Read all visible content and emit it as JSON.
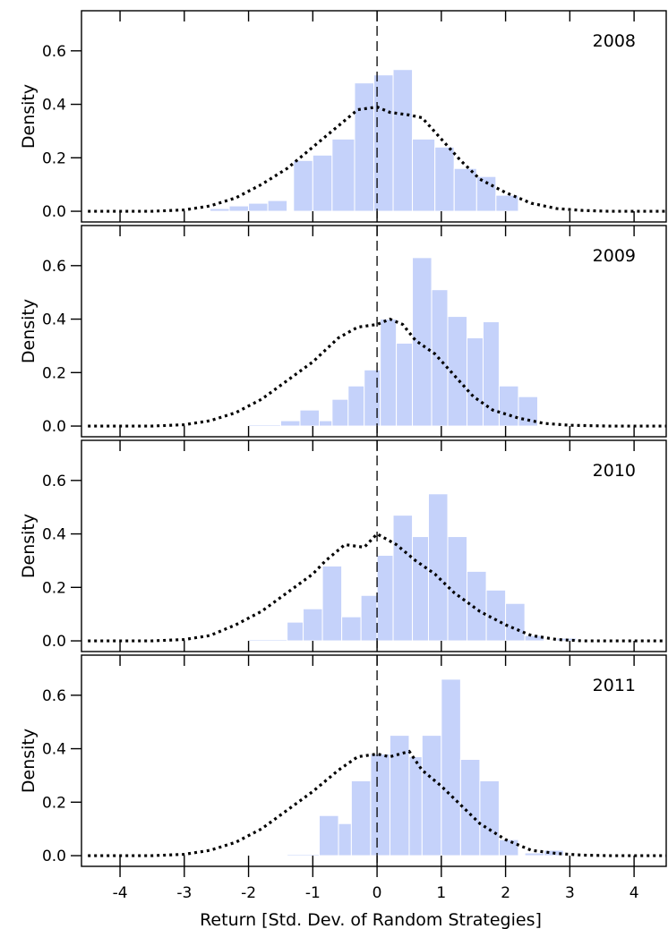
{
  "chart_data": {
    "type": "bar",
    "xlabel": "Return [Std. Dev. of Random Strategies]",
    "ylabel": "Density",
    "xlim": [
      -4.6,
      4.5
    ],
    "ylim": [
      -0.04,
      0.75
    ],
    "x_ticks": [
      -4,
      -3,
      -2,
      -1,
      0,
      1,
      2,
      3,
      4
    ],
    "y_ticks": [
      0.0,
      0.2,
      0.4,
      0.6
    ],
    "y_tick_labels": [
      "0.0",
      "0.2",
      "0.4",
      "0.6"
    ],
    "reference_line_x": 0,
    "bar_color": "#c5d2fa",
    "panels": [
      {
        "label": "2008",
        "bins": [
          {
            "x0": -2.6,
            "x1": -2.3,
            "y": 0.01
          },
          {
            "x0": -2.3,
            "x1": -2.0,
            "y": 0.02
          },
          {
            "x0": -2.0,
            "x1": -1.7,
            "y": 0.03
          },
          {
            "x0": -1.7,
            "x1": -1.4,
            "y": 0.04
          },
          {
            "x0": -1.3,
            "x1": -1.0,
            "y": 0.19
          },
          {
            "x0": -1.0,
            "x1": -0.7,
            "y": 0.21
          },
          {
            "x0": -0.7,
            "x1": -0.35,
            "y": 0.27
          },
          {
            "x0": -0.35,
            "x1": -0.05,
            "y": 0.48
          },
          {
            "x0": -0.05,
            "x1": 0.25,
            "y": 0.51
          },
          {
            "x0": 0.25,
            "x1": 0.55,
            "y": 0.53
          },
          {
            "x0": 0.55,
            "x1": 0.9,
            "y": 0.27
          },
          {
            "x0": 0.9,
            "x1": 1.2,
            "y": 0.24
          },
          {
            "x0": 1.2,
            "x1": 1.55,
            "y": 0.16
          },
          {
            "x0": 1.55,
            "x1": 1.85,
            "y": 0.13
          },
          {
            "x0": 1.85,
            "x1": 2.2,
            "y": 0.06
          }
        ],
        "density": [
          [
            -4.5,
            0.0
          ],
          [
            -4.0,
            0.0
          ],
          [
            -3.5,
            0.0
          ],
          [
            -3.0,
            0.005
          ],
          [
            -2.6,
            0.02
          ],
          [
            -2.2,
            0.05
          ],
          [
            -1.8,
            0.1
          ],
          [
            -1.4,
            0.16
          ],
          [
            -1.0,
            0.24
          ],
          [
            -0.6,
            0.32
          ],
          [
            -0.3,
            0.38
          ],
          [
            0.0,
            0.39
          ],
          [
            0.2,
            0.37
          ],
          [
            0.5,
            0.36
          ],
          [
            0.7,
            0.35
          ],
          [
            1.0,
            0.27
          ],
          [
            1.3,
            0.19
          ],
          [
            1.6,
            0.12
          ],
          [
            2.0,
            0.07
          ],
          [
            2.4,
            0.03
          ],
          [
            2.8,
            0.01
          ],
          [
            3.2,
            0.003
          ],
          [
            3.6,
            0.0
          ],
          [
            4.5,
            0.0
          ]
        ]
      },
      {
        "label": "2009",
        "bins": [
          {
            "x0": -2.0,
            "x1": -1.5,
            "y": 0.005
          },
          {
            "x0": -1.5,
            "x1": -1.2,
            "y": 0.02
          },
          {
            "x0": -1.2,
            "x1": -0.9,
            "y": 0.06
          },
          {
            "x0": -0.9,
            "x1": -0.7,
            "y": 0.02
          },
          {
            "x0": -0.7,
            "x1": -0.45,
            "y": 0.1
          },
          {
            "x0": -0.45,
            "x1": -0.2,
            "y": 0.15
          },
          {
            "x0": -0.2,
            "x1": 0.05,
            "y": 0.21
          },
          {
            "x0": 0.05,
            "x1": 0.3,
            "y": 0.4
          },
          {
            "x0": 0.3,
            "x1": 0.55,
            "y": 0.31
          },
          {
            "x0": 0.55,
            "x1": 0.85,
            "y": 0.63
          },
          {
            "x0": 0.85,
            "x1": 1.1,
            "y": 0.51
          },
          {
            "x0": 1.1,
            "x1": 1.4,
            "y": 0.41
          },
          {
            "x0": 1.4,
            "x1": 1.65,
            "y": 0.33
          },
          {
            "x0": 1.65,
            "x1": 1.9,
            "y": 0.39
          },
          {
            "x0": 1.9,
            "x1": 2.2,
            "y": 0.15
          },
          {
            "x0": 2.2,
            "x1": 2.5,
            "y": 0.11
          }
        ],
        "density": [
          [
            -4.5,
            0.0
          ],
          [
            -4.0,
            0.0
          ],
          [
            -3.5,
            0.0
          ],
          [
            -3.0,
            0.005
          ],
          [
            -2.6,
            0.02
          ],
          [
            -2.2,
            0.05
          ],
          [
            -1.8,
            0.1
          ],
          [
            -1.4,
            0.17
          ],
          [
            -1.0,
            0.24
          ],
          [
            -0.6,
            0.33
          ],
          [
            -0.3,
            0.37
          ],
          [
            0.0,
            0.38
          ],
          [
            0.2,
            0.4
          ],
          [
            0.4,
            0.38
          ],
          [
            0.6,
            0.32
          ],
          [
            0.9,
            0.27
          ],
          [
            1.2,
            0.19
          ],
          [
            1.5,
            0.11
          ],
          [
            1.8,
            0.06
          ],
          [
            2.2,
            0.03
          ],
          [
            2.6,
            0.01
          ],
          [
            3.0,
            0.003
          ],
          [
            3.6,
            0.0
          ],
          [
            4.5,
            0.0
          ]
        ]
      },
      {
        "label": "2010",
        "bins": [
          {
            "x0": -2.0,
            "x1": -1.4,
            "y": 0.005
          },
          {
            "x0": -1.4,
            "x1": -1.15,
            "y": 0.07
          },
          {
            "x0": -1.15,
            "x1": -0.85,
            "y": 0.12
          },
          {
            "x0": -0.85,
            "x1": -0.55,
            "y": 0.28
          },
          {
            "x0": -0.55,
            "x1": -0.25,
            "y": 0.09
          },
          {
            "x0": -0.25,
            "x1": 0.0,
            "y": 0.17
          },
          {
            "x0": 0.0,
            "x1": 0.25,
            "y": 0.32
          },
          {
            "x0": 0.25,
            "x1": 0.55,
            "y": 0.47
          },
          {
            "x0": 0.55,
            "x1": 0.8,
            "y": 0.39
          },
          {
            "x0": 0.8,
            "x1": 1.1,
            "y": 0.55
          },
          {
            "x0": 1.1,
            "x1": 1.4,
            "y": 0.39
          },
          {
            "x0": 1.4,
            "x1": 1.7,
            "y": 0.26
          },
          {
            "x0": 1.7,
            "x1": 2.0,
            "y": 0.19
          },
          {
            "x0": 2.0,
            "x1": 2.3,
            "y": 0.14
          },
          {
            "x0": 2.3,
            "x1": 2.6,
            "y": 0.02
          },
          {
            "x0": 2.8,
            "x1": 3.1,
            "y": 0.01
          }
        ],
        "density": [
          [
            -4.5,
            0.0
          ],
          [
            -4.0,
            0.0
          ],
          [
            -3.5,
            0.0
          ],
          [
            -3.0,
            0.005
          ],
          [
            -2.6,
            0.02
          ],
          [
            -2.2,
            0.06
          ],
          [
            -1.8,
            0.11
          ],
          [
            -1.4,
            0.18
          ],
          [
            -1.0,
            0.25
          ],
          [
            -0.8,
            0.3
          ],
          [
            -0.5,
            0.36
          ],
          [
            -0.2,
            0.35
          ],
          [
            0.0,
            0.4
          ],
          [
            0.3,
            0.36
          ],
          [
            0.6,
            0.3
          ],
          [
            0.9,
            0.25
          ],
          [
            1.2,
            0.18
          ],
          [
            1.6,
            0.11
          ],
          [
            2.0,
            0.06
          ],
          [
            2.4,
            0.02
          ],
          [
            2.8,
            0.005
          ],
          [
            3.2,
            0.0
          ],
          [
            4.5,
            0.0
          ]
        ]
      },
      {
        "label": "2011",
        "bins": [
          {
            "x0": -1.4,
            "x1": -0.9,
            "y": 0.005
          },
          {
            "x0": -0.9,
            "x1": -0.6,
            "y": 0.15
          },
          {
            "x0": -0.6,
            "x1": -0.4,
            "y": 0.12
          },
          {
            "x0": -0.4,
            "x1": -0.1,
            "y": 0.28
          },
          {
            "x0": -0.1,
            "x1": 0.2,
            "y": 0.38
          },
          {
            "x0": 0.2,
            "x1": 0.5,
            "y": 0.45
          },
          {
            "x0": 0.5,
            "x1": 0.7,
            "y": 0.37
          },
          {
            "x0": 0.7,
            "x1": 1.0,
            "y": 0.45
          },
          {
            "x0": 1.0,
            "x1": 1.3,
            "y": 0.66
          },
          {
            "x0": 1.3,
            "x1": 1.6,
            "y": 0.36
          },
          {
            "x0": 1.6,
            "x1": 1.9,
            "y": 0.28
          },
          {
            "x0": 1.9,
            "x1": 2.2,
            "y": 0.06
          },
          {
            "x0": 2.3,
            "x1": 2.6,
            "y": 0.01
          },
          {
            "x0": 2.6,
            "x1": 2.9,
            "y": 0.02
          }
        ],
        "density": [
          [
            -4.5,
            0.0
          ],
          [
            -4.0,
            0.0
          ],
          [
            -3.5,
            0.0
          ],
          [
            -3.0,
            0.005
          ],
          [
            -2.6,
            0.02
          ],
          [
            -2.2,
            0.05
          ],
          [
            -1.8,
            0.1
          ],
          [
            -1.4,
            0.17
          ],
          [
            -1.0,
            0.24
          ],
          [
            -0.6,
            0.32
          ],
          [
            -0.3,
            0.37
          ],
          [
            0.0,
            0.38
          ],
          [
            0.2,
            0.37
          ],
          [
            0.5,
            0.39
          ],
          [
            0.7,
            0.32
          ],
          [
            1.0,
            0.26
          ],
          [
            1.3,
            0.19
          ],
          [
            1.6,
            0.12
          ],
          [
            2.0,
            0.06
          ],
          [
            2.4,
            0.02
          ],
          [
            2.8,
            0.008
          ],
          [
            3.2,
            0.002
          ],
          [
            3.6,
            0.0
          ],
          [
            4.5,
            0.0
          ]
        ]
      }
    ]
  }
}
